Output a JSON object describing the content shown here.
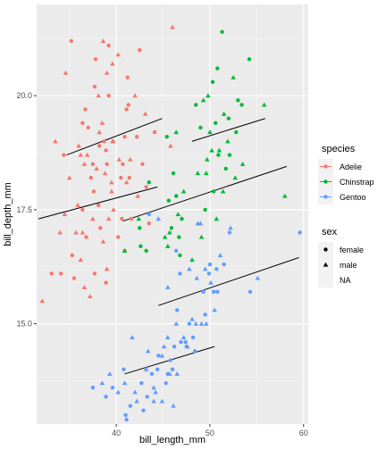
{
  "chart_data": {
    "type": "scatter",
    "xlabel": "bill_length_mm",
    "ylabel": "bill_depth_mm",
    "xlim": [
      31.5,
      60.5
    ],
    "ylim": [
      12.8,
      22.0
    ],
    "x_ticks": [
      40,
      50,
      60
    ],
    "x_tick_labels": [
      "40",
      "50",
      "60"
    ],
    "y_ticks": [
      15.0,
      17.5,
      20.0
    ],
    "y_tick_labels": [
      "15.0",
      "17.5",
      "20.0"
    ],
    "grid": true,
    "legend_position": "right",
    "colors": {
      "panel": "#ebebeb",
      "grid_major": "#ffffff",
      "Adelie": "#F8766D",
      "Chinstrap": "#00BA38",
      "Gentoo": "#619CFF",
      "trend_line": "#000000"
    },
    "legends": {
      "species": {
        "title": "species",
        "items": [
          {
            "label": "Adelie",
            "color": "#F8766D"
          },
          {
            "label": "Chinstrap",
            "color": "#00BA38"
          },
          {
            "label": "Gentoo",
            "color": "#619CFF"
          }
        ]
      },
      "sex": {
        "title": "sex",
        "items": [
          {
            "label": "female",
            "shape": "circle"
          },
          {
            "label": "male",
            "shape": "triangle"
          },
          {
            "label": "NA",
            "shape": "none"
          }
        ]
      }
    },
    "series": [
      {
        "species": "Adelie",
        "points": [
          [
            35.2,
            21.2
          ],
          [
            38.6,
            21.2
          ],
          [
            39.2,
            21.1
          ],
          [
            39.6,
            20.7
          ],
          [
            37.8,
            20.8
          ],
          [
            40.2,
            20.9
          ],
          [
            42.5,
            21.0
          ],
          [
            46.0,
            21.5
          ],
          [
            37.7,
            20.2
          ],
          [
            39.0,
            20.5
          ],
          [
            41.2,
            20.4
          ],
          [
            34.6,
            20.5
          ],
          [
            36.7,
            19.7
          ],
          [
            38.1,
            20.0
          ],
          [
            39.2,
            20.0
          ],
          [
            42.0,
            20.0
          ],
          [
            41.1,
            19.7
          ],
          [
            43.1,
            19.6
          ],
          [
            37.0,
            19.3
          ],
          [
            36.0,
            18.9
          ],
          [
            38.7,
            19.0
          ],
          [
            39.7,
            19.0
          ],
          [
            41.3,
            19.8
          ],
          [
            38.5,
            19.4
          ],
          [
            44.1,
            19.2
          ],
          [
            45.8,
            18.9
          ],
          [
            40.9,
            19.1
          ],
          [
            36.2,
            18.7
          ],
          [
            38.2,
            18.9
          ],
          [
            39.6,
            19.0
          ],
          [
            42.2,
            19.1
          ],
          [
            37.9,
            18.4
          ],
          [
            40.7,
            18.5
          ],
          [
            41.5,
            18.6
          ],
          [
            39.0,
            18.5
          ],
          [
            36.6,
            18.5
          ],
          [
            38.9,
            18.8
          ],
          [
            40.3,
            18.6
          ],
          [
            42.8,
            18.5
          ],
          [
            35.0,
            18.2
          ],
          [
            37.3,
            18.2
          ],
          [
            38.8,
            18.3
          ],
          [
            40.5,
            18.2
          ],
          [
            41.1,
            18.1
          ],
          [
            43.2,
            18.0
          ],
          [
            33.5,
            19.0
          ],
          [
            34.4,
            18.7
          ],
          [
            36.9,
            18.7
          ],
          [
            37.6,
            17.9
          ],
          [
            39.5,
            17.9
          ],
          [
            41.4,
            18.2
          ],
          [
            35.9,
            17.6
          ],
          [
            38.1,
            17.6
          ],
          [
            39.7,
            17.5
          ],
          [
            40.6,
            17.3
          ],
          [
            34.5,
            17.4
          ],
          [
            36.4,
            17.5
          ],
          [
            37.5,
            17.3
          ],
          [
            38.3,
            17.1
          ],
          [
            39.2,
            17.3
          ],
          [
            41.6,
            17.3
          ],
          [
            35.7,
            17.0
          ],
          [
            36.8,
            16.9
          ],
          [
            38.6,
            16.8
          ],
          [
            40.2,
            16.9
          ],
          [
            34.0,
            17.0
          ],
          [
            35.3,
            16.5
          ],
          [
            36.2,
            16.4
          ],
          [
            37.7,
            16.1
          ],
          [
            39.0,
            16.2
          ],
          [
            35.5,
            16.0
          ],
          [
            36.6,
            15.8
          ],
          [
            38.9,
            15.9
          ],
          [
            37.2,
            15.6
          ],
          [
            34.1,
            16.1
          ],
          [
            32.1,
            15.5
          ],
          [
            33.1,
            16.1
          ],
          [
            36.4,
            17.0
          ],
          [
            37.5,
            18.5
          ],
          [
            39.5,
            18.1
          ],
          [
            40.9,
            16.6
          ],
          [
            42.3,
            17.8
          ],
          [
            43.5,
            17.2
          ],
          [
            38.2,
            19.2
          ],
          [
            36.4,
            19.4
          ]
        ],
        "trend": [
          [
            34.7,
            18.7
          ],
          [
            44.9,
            19.5
          ]
        ]
      },
      {
        "species": "Chinstrap",
        "points": [
          [
            51.3,
            21.4
          ],
          [
            55.8,
            19.8
          ],
          [
            54.2,
            20.8
          ],
          [
            52.5,
            20.4
          ],
          [
            50.8,
            20.6
          ],
          [
            49.8,
            20.0
          ],
          [
            53.4,
            19.8
          ],
          [
            51.5,
            19.6
          ],
          [
            50.3,
            20.3
          ],
          [
            49.3,
            19.9
          ],
          [
            52.8,
            19.2
          ],
          [
            50.0,
            19.2
          ],
          [
            48.5,
            19.8
          ],
          [
            51.9,
            19.0
          ],
          [
            49.0,
            19.3
          ],
          [
            46.4,
            19.2
          ],
          [
            45.4,
            19.1
          ],
          [
            50.2,
            18.8
          ],
          [
            52.1,
            18.7
          ],
          [
            53.5,
            18.5
          ],
          [
            50.9,
            18.7
          ],
          [
            49.6,
            18.3
          ],
          [
            51.7,
            18.4
          ],
          [
            48.7,
            18.3
          ],
          [
            46.1,
            18.3
          ],
          [
            47.2,
            17.9
          ],
          [
            50.4,
            17.9
          ],
          [
            52.7,
            18.2
          ],
          [
            45.6,
            17.7
          ],
          [
            46.6,
            17.4
          ],
          [
            49.5,
            17.5
          ],
          [
            51.4,
            17.9
          ],
          [
            46.7,
            16.9
          ],
          [
            45.5,
            16.7
          ],
          [
            45.9,
            17.1
          ],
          [
            50.7,
            17.3
          ],
          [
            42.6,
            16.7
          ],
          [
            40.9,
            16.6
          ],
          [
            43.2,
            16.6
          ],
          [
            45.2,
            16.9
          ],
          [
            46.8,
            16.5
          ],
          [
            49.1,
            16.9
          ],
          [
            46.4,
            17.8
          ],
          [
            58.0,
            17.8
          ],
          [
            43.5,
            18.1
          ],
          [
            42.4,
            17.3
          ],
          [
            47.0,
            17.3
          ],
          [
            51.0,
            18.8
          ],
          [
            52.0,
            19.5
          ],
          [
            49.7,
            18.6
          ],
          [
            50.6,
            19.4
          ],
          [
            45.7,
            17.0
          ],
          [
            53.0,
            19.9
          ],
          [
            48.1,
            16.4
          ],
          [
            42.5,
            17.1
          ]
        ],
        "trend": [
          [
            48.1,
            19.0
          ],
          [
            55.9,
            19.5
          ]
        ]
      },
      {
        "species": "Gentoo",
        "points": [
          [
            59.6,
            17.0
          ],
          [
            55.1,
            16.0
          ],
          [
            54.3,
            15.7
          ],
          [
            51.1,
            16.5
          ],
          [
            50.4,
            15.7
          ],
          [
            49.5,
            16.2
          ],
          [
            52.1,
            17.0
          ],
          [
            48.7,
            17.2
          ],
          [
            50.0,
            16.3
          ],
          [
            47.8,
            16.2
          ],
          [
            46.8,
            16.1
          ],
          [
            45.5,
            15.8
          ],
          [
            43.5,
            17.4
          ],
          [
            44.5,
            17.3
          ],
          [
            46.5,
            15.3
          ],
          [
            48.5,
            15.0
          ],
          [
            49.5,
            15.2
          ],
          [
            50.5,
            15.3
          ],
          [
            47.5,
            14.5
          ],
          [
            45.5,
            14.7
          ],
          [
            46.2,
            14.5
          ],
          [
            44.9,
            14.3
          ],
          [
            48.2,
            14.7
          ],
          [
            49.6,
            15.0
          ],
          [
            50.8,
            15.7
          ],
          [
            45.1,
            14.5
          ],
          [
            46.9,
            14.6
          ],
          [
            49.1,
            15.0
          ],
          [
            48.4,
            14.4
          ],
          [
            44.0,
            13.6
          ],
          [
            45.3,
            13.7
          ],
          [
            46.5,
            13.9
          ],
          [
            42.9,
            13.1
          ],
          [
            41.7,
            14.7
          ],
          [
            44.5,
            14.3
          ],
          [
            43.4,
            14.4
          ],
          [
            42.7,
            13.7
          ],
          [
            40.9,
            13.7
          ],
          [
            39.6,
            13.6
          ],
          [
            40.2,
            13.5
          ],
          [
            41.5,
            13.2
          ],
          [
            42.2,
            13.3
          ],
          [
            43.3,
            13.4
          ],
          [
            44.9,
            13.3
          ],
          [
            45.5,
            13.9
          ],
          [
            46.1,
            13.2
          ],
          [
            47.4,
            14.6
          ],
          [
            46.4,
            15.0
          ],
          [
            47.8,
            15.0
          ],
          [
            48.1,
            15.1
          ],
          [
            49.3,
            15.7
          ],
          [
            50.1,
            15.9
          ],
          [
            51.5,
            16.3
          ],
          [
            47.6,
            14.5
          ],
          [
            43.8,
            13.9
          ],
          [
            42.0,
            13.5
          ],
          [
            46.0,
            14.0
          ],
          [
            48.6,
            16.0
          ],
          [
            50.7,
            16.2
          ],
          [
            45.7,
            13.9
          ],
          [
            41.0,
            13.0
          ],
          [
            43.2,
            14.0
          ],
          [
            37.5,
            13.6
          ],
          [
            38.5,
            13.7
          ],
          [
            38.9,
            13.4
          ],
          [
            39.3,
            13.9
          ],
          [
            40.8,
            14.0
          ],
          [
            44.0,
            13.3
          ],
          [
            41.1,
            12.9
          ],
          [
            44.2,
            13.5
          ],
          [
            45.8,
            14.2
          ],
          [
            47.2,
            14.7
          ],
          [
            49.9,
            16.1
          ],
          [
            52.2,
            17.1
          ],
          [
            46.4,
            16.6
          ],
          [
            49.0,
            17.2
          ],
          [
            44.4,
            14.0
          ]
        ],
        "trend": [
          [
            40.9,
            13.9
          ],
          [
            50.5,
            14.5
          ]
        ]
      }
    ],
    "additional_trend_lines": [
      {
        "x": [
          31.7,
          44.4
        ],
        "y": [
          17.3,
          18.0
        ]
      },
      {
        "x": [
          40.7,
          58.2
        ],
        "y": [
          17.25,
          18.45
        ]
      },
      {
        "x": [
          44.5,
          59.5
        ],
        "y": [
          15.4,
          16.45
        ]
      }
    ]
  }
}
